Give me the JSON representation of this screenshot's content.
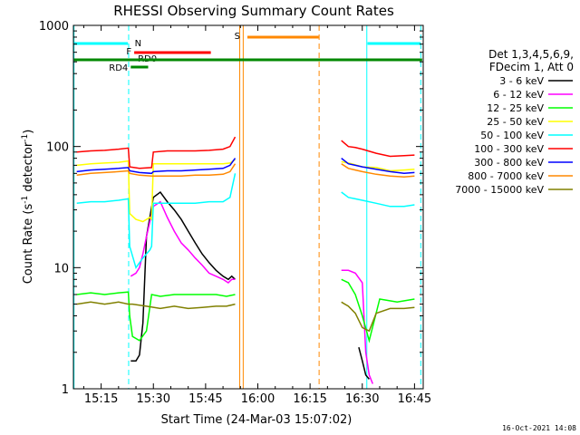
{
  "chart_data": {
    "type": "line",
    "title": "RHESSI Observing Summary Count Rates",
    "xlabel": "Start Time (24-Mar-03 15:07:02)",
    "ylabel_main": "Count Rate (s",
    "ylabel_sup1": "-1",
    "ylabel_mid": " detector",
    "ylabel_sup2": "-1",
    "ylabel_end": ")",
    "footer": "16-Oct-2021 14:08",
    "x_range_min": [
      7.03,
      107.5
    ],
    "yscale": "log",
    "ylim": [
      1,
      1000
    ],
    "x_ticks": [
      {
        "t": 15,
        "label": "15:15"
      },
      {
        "t": 30,
        "label": "15:30"
      },
      {
        "t": 45,
        "label": "15:45"
      },
      {
        "t": 60,
        "label": "16:00"
      },
      {
        "t": 75,
        "label": "16:15"
      },
      {
        "t": 90,
        "label": "16:30"
      },
      {
        "t": 105,
        "label": "16:45"
      }
    ],
    "y_ticks": [
      {
        "v": 1,
        "label": "1"
      },
      {
        "v": 10,
        "label": "10"
      },
      {
        "v": 100,
        "label": "100"
      },
      {
        "v": 1000,
        "label": "1000"
      }
    ],
    "legend_header": [
      "Det 1,3,4,5,6,9,",
      "FDecim 1, Att 0"
    ],
    "series": [
      {
        "name": "3 - 6 keV",
        "color": "#000000",
        "points": [
          [
            23.5,
            1.7
          ],
          [
            25,
            1.7
          ],
          [
            26,
            1.9
          ],
          [
            27,
            3.5
          ],
          [
            28,
            18
          ],
          [
            30,
            38
          ],
          [
            32,
            42
          ],
          [
            34,
            35
          ],
          [
            36,
            30
          ],
          [
            38,
            25
          ],
          [
            40,
            20
          ],
          [
            42,
            16
          ],
          [
            44,
            13
          ],
          [
            46,
            11
          ],
          [
            48,
            9.5
          ],
          [
            50,
            8.5
          ],
          [
            51.5,
            8
          ],
          [
            52.5,
            8.5
          ],
          [
            53.5,
            8
          ],
          [
            null,
            null
          ],
          [
            89,
            2.2
          ],
          [
            90,
            1.7
          ],
          [
            91,
            1.3
          ],
          [
            92,
            1.2
          ]
        ]
      },
      {
        "name": "6 - 12 keV",
        "color": "#ff00ff",
        "points": [
          [
            23.5,
            8.5
          ],
          [
            25,
            9
          ],
          [
            26,
            10
          ],
          [
            27,
            13
          ],
          [
            28,
            18
          ],
          [
            30,
            32
          ],
          [
            32,
            35
          ],
          [
            34,
            26
          ],
          [
            36,
            20
          ],
          [
            38,
            16
          ],
          [
            40,
            14
          ],
          [
            42,
            12
          ],
          [
            44,
            10.5
          ],
          [
            46,
            9
          ],
          [
            48,
            8.5
          ],
          [
            50,
            8
          ],
          [
            51.5,
            7.5
          ],
          [
            52.5,
            8
          ],
          [
            53.5,
            8
          ],
          [
            null,
            null
          ],
          [
            84,
            9.5
          ],
          [
            86,
            9.5
          ],
          [
            88,
            9
          ],
          [
            90,
            7.5
          ],
          [
            91,
            2
          ],
          [
            92,
            1.3
          ],
          [
            93,
            1.1
          ]
        ]
      },
      {
        "name": "12 - 25 keV",
        "color": "#00ff00",
        "points": [
          [
            8,
            6
          ],
          [
            12,
            6.2
          ],
          [
            16,
            6
          ],
          [
            20,
            6.2
          ],
          [
            22.8,
            6.3
          ],
          [
            23.2,
            4
          ],
          [
            24,
            2.7
          ],
          [
            26,
            2.5
          ],
          [
            28,
            3
          ],
          [
            29.5,
            6
          ],
          [
            32,
            5.8
          ],
          [
            36,
            6
          ],
          [
            40,
            6
          ],
          [
            44,
            6
          ],
          [
            48,
            6
          ],
          [
            51,
            5.8
          ],
          [
            53.5,
            6
          ],
          [
            null,
            null
          ],
          [
            84,
            8
          ],
          [
            86,
            7.5
          ],
          [
            88,
            6
          ],
          [
            90,
            4
          ],
          [
            92,
            2.5
          ],
          [
            95,
            5.5
          ],
          [
            100,
            5.2
          ],
          [
            105,
            5.5
          ]
        ]
      },
      {
        "name": "25 - 50 keV",
        "color": "#ffff00",
        "points": [
          [
            8,
            70
          ],
          [
            12,
            72
          ],
          [
            16,
            73
          ],
          [
            20,
            74
          ],
          [
            22.8,
            76
          ],
          [
            23.2,
            28
          ],
          [
            25,
            25
          ],
          [
            27,
            24
          ],
          [
            29,
            26
          ],
          [
            29.5,
            25
          ],
          [
            30,
            72
          ],
          [
            34,
            72
          ],
          [
            38,
            72
          ],
          [
            42,
            72
          ],
          [
            46,
            72
          ],
          [
            50,
            72
          ],
          [
            52,
            73
          ],
          [
            53.5,
            78
          ],
          [
            null,
            null
          ],
          [
            84,
            75
          ],
          [
            87,
            72
          ],
          [
            90,
            68
          ],
          [
            94,
            67
          ],
          [
            98,
            63
          ],
          [
            102,
            64
          ],
          [
            105,
            65
          ]
        ]
      },
      {
        "name": "50 - 100 keV",
        "color": "#00ffff",
        "points": [
          [
            8,
            34
          ],
          [
            12,
            35
          ],
          [
            16,
            35
          ],
          [
            20,
            36
          ],
          [
            22.8,
            37
          ],
          [
            23.2,
            15
          ],
          [
            25,
            10
          ],
          [
            27,
            12
          ],
          [
            29,
            14
          ],
          [
            29.5,
            15
          ],
          [
            30,
            34
          ],
          [
            34,
            34
          ],
          [
            38,
            34
          ],
          [
            42,
            34
          ],
          [
            46,
            35
          ],
          [
            50,
            35
          ],
          [
            52,
            38
          ],
          [
            53.5,
            60
          ],
          [
            null,
            null
          ],
          [
            84,
            42
          ],
          [
            86,
            38
          ],
          [
            88,
            37
          ],
          [
            90,
            36
          ],
          [
            94,
            34
          ],
          [
            98,
            32
          ],
          [
            102,
            32
          ],
          [
            105,
            33
          ]
        ]
      },
      {
        "name": "100 - 300 keV",
        "color": "#ff0000",
        "points": [
          [
            8,
            90
          ],
          [
            12,
            92
          ],
          [
            16,
            93
          ],
          [
            20,
            95
          ],
          [
            22.8,
            97
          ],
          [
            23.2,
            68
          ],
          [
            26,
            66
          ],
          [
            29.5,
            67
          ],
          [
            30,
            90
          ],
          [
            34,
            92
          ],
          [
            38,
            92
          ],
          [
            42,
            92
          ],
          [
            46,
            93
          ],
          [
            50,
            95
          ],
          [
            52,
            100
          ],
          [
            53.5,
            120
          ],
          [
            null,
            null
          ],
          [
            84,
            112
          ],
          [
            86,
            100
          ],
          [
            88,
            98
          ],
          [
            90,
            95
          ],
          [
            94,
            88
          ],
          [
            98,
            83
          ],
          [
            102,
            84
          ],
          [
            105,
            85
          ]
        ]
      },
      {
        "name": "300 - 800 keV",
        "color": "#0000ff",
        "points": [
          [
            8,
            62
          ],
          [
            12,
            64
          ],
          [
            16,
            65
          ],
          [
            20,
            66
          ],
          [
            22.8,
            67
          ],
          [
            23.2,
            63
          ],
          [
            26,
            61
          ],
          [
            29.5,
            60
          ],
          [
            30,
            62
          ],
          [
            34,
            63
          ],
          [
            38,
            63
          ],
          [
            42,
            64
          ],
          [
            46,
            65
          ],
          [
            50,
            66
          ],
          [
            52,
            70
          ],
          [
            53.5,
            80
          ],
          [
            null,
            null
          ],
          [
            84,
            80
          ],
          [
            86,
            72
          ],
          [
            88,
            70
          ],
          [
            90,
            68
          ],
          [
            94,
            65
          ],
          [
            98,
            62
          ],
          [
            102,
            60
          ],
          [
            105,
            61
          ]
        ]
      },
      {
        "name": "800 - 7000 keV",
        "color": "#ff8800",
        "points": [
          [
            8,
            58
          ],
          [
            12,
            60
          ],
          [
            16,
            61
          ],
          [
            20,
            62
          ],
          [
            22.8,
            63
          ],
          [
            23.2,
            60
          ],
          [
            26,
            58
          ],
          [
            29.5,
            57
          ],
          [
            30,
            57
          ],
          [
            34,
            57
          ],
          [
            38,
            57
          ],
          [
            42,
            58
          ],
          [
            46,
            58
          ],
          [
            50,
            59
          ],
          [
            52,
            62
          ],
          [
            53.5,
            72
          ],
          [
            null,
            null
          ],
          [
            84,
            72
          ],
          [
            86,
            66
          ],
          [
            88,
            64
          ],
          [
            90,
            62
          ],
          [
            94,
            59
          ],
          [
            98,
            57
          ],
          [
            102,
            56
          ],
          [
            105,
            57
          ]
        ]
      },
      {
        "name": "7000 - 15000 keV",
        "color": "#808000",
        "points": [
          [
            8,
            5
          ],
          [
            12,
            5.2
          ],
          [
            16,
            5
          ],
          [
            20,
            5.2
          ],
          [
            22.8,
            5
          ],
          [
            24,
            5
          ],
          [
            28,
            4.8
          ],
          [
            32,
            4.6
          ],
          [
            36,
            4.8
          ],
          [
            40,
            4.6
          ],
          [
            44,
            4.7
          ],
          [
            48,
            4.8
          ],
          [
            51,
            4.8
          ],
          [
            53.5,
            5
          ],
          [
            null,
            null
          ],
          [
            84,
            5.2
          ],
          [
            86,
            4.8
          ],
          [
            88,
            4.2
          ],
          [
            90,
            3.2
          ],
          [
            92,
            3
          ],
          [
            94,
            4.2
          ],
          [
            98,
            4.6
          ],
          [
            102,
            4.6
          ],
          [
            105,
            4.7
          ]
        ]
      }
    ],
    "annotations": {
      "flags": [
        {
          "label": "N",
          "color": "#00ffff",
          "start": 7.2,
          "end": 22.7
        },
        {
          "label": "",
          "color": "#00ffff",
          "start": 91.5,
          "end": 106.8
        },
        {
          "label": "F",
          "color": "#ff0000",
          "start": 24.5,
          "end": 46.5
        },
        {
          "label": "RD0",
          "color": "#ff0000",
          "start": 24.5,
          "end": 28.5
        },
        {
          "label": "RD4",
          "color": "#008800",
          "start": 23.5,
          "end": 28.5
        },
        {
          "label": "S",
          "color": "#ff8800",
          "start": 57,
          "end": 77.5
        },
        {
          "label": "",
          "color": "#008800",
          "start": 7.2,
          "end": 107.2
        }
      ],
      "vlines": [
        {
          "t": 7.2,
          "color": "#00ffff",
          "style": "solid"
        },
        {
          "t": 22.9,
          "color": "#00ffff",
          "style": "dashed"
        },
        {
          "t": 54.8,
          "color": "#ff8800",
          "style": "solid"
        },
        {
          "t": 55.8,
          "color": "#ff8800",
          "style": "solid"
        },
        {
          "t": 77.6,
          "color": "#ff8800",
          "style": "dashed"
        },
        {
          "t": 91.3,
          "color": "#00ffff",
          "style": "solid"
        },
        {
          "t": 106.8,
          "color": "#00ffff",
          "style": "dashed"
        }
      ]
    }
  }
}
